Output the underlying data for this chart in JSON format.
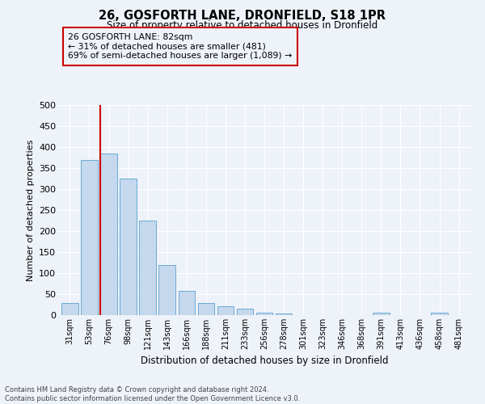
{
  "title": "26, GOSFORTH LANE, DRONFIELD, S18 1PR",
  "subtitle": "Size of property relative to detached houses in Dronfield",
  "xlabel": "Distribution of detached houses by size in Dronfield",
  "ylabel": "Number of detached properties",
  "bar_labels": [
    "31sqm",
    "53sqm",
    "76sqm",
    "98sqm",
    "121sqm",
    "143sqm",
    "166sqm",
    "188sqm",
    "211sqm",
    "233sqm",
    "256sqm",
    "278sqm",
    "301sqm",
    "323sqm",
    "346sqm",
    "368sqm",
    "391sqm",
    "413sqm",
    "436sqm",
    "458sqm",
    "481sqm"
  ],
  "bar_values": [
    28,
    370,
    385,
    325,
    225,
    120,
    58,
    28,
    22,
    16,
    6,
    4,
    0,
    0,
    0,
    0,
    5,
    0,
    0,
    5,
    0
  ],
  "bar_color": "#c5d8ed",
  "bar_edgecolor": "#6aaad4",
  "ylim": [
    0,
    500
  ],
  "yticks": [
    0,
    50,
    100,
    150,
    200,
    250,
    300,
    350,
    400,
    450,
    500
  ],
  "property_line_color": "#cc0000",
  "annotation_title": "26 GOSFORTH LANE: 82sqm",
  "annotation_line1": "← 31% of detached houses are smaller (481)",
  "annotation_line2": "69% of semi-detached houses are larger (1,089) →",
  "annotation_box_edgecolor": "#cc0000",
  "footer_line1": "Contains HM Land Registry data © Crown copyright and database right 2024.",
  "footer_line2": "Contains public sector information licensed under the Open Government Licence v3.0.",
  "background_color": "#eef2f9",
  "grid_color": "#ffffff"
}
